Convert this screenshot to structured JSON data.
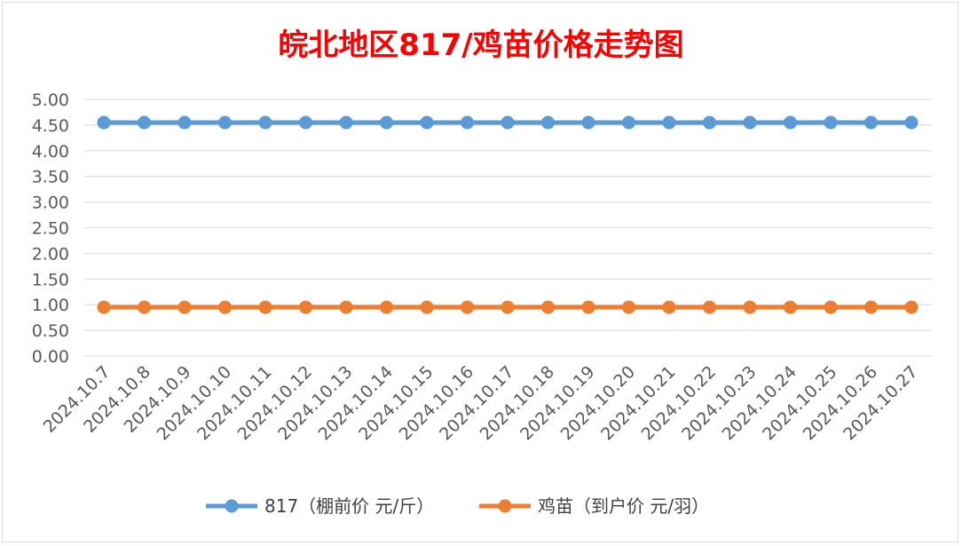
{
  "chart_data": {
    "type": "line",
    "title": "皖北地区817/鸡苗价格走势图",
    "title_color": "#ff0000",
    "x": [
      "2024.10.7",
      "2024.10.8",
      "2024.10.9",
      "2024.10.10",
      "2024.10.11",
      "2024.10.12",
      "2024.10.13",
      "2024.10.14",
      "2024.10.15",
      "2024.10.16",
      "2024.10.17",
      "2024.10.18",
      "2024.10.19",
      "2024.10.20",
      "2024.10.21",
      "2024.10.22",
      "2024.10.23",
      "2024.10.24",
      "2024.10.25",
      "2024.10.26",
      "2024.10.27"
    ],
    "series": [
      {
        "name": "817（棚前价 元/斤）",
        "color": "#5b9bd5",
        "values": [
          4.55,
          4.55,
          4.55,
          4.55,
          4.55,
          4.55,
          4.55,
          4.55,
          4.55,
          4.55,
          4.55,
          4.55,
          4.55,
          4.55,
          4.55,
          4.55,
          4.55,
          4.55,
          4.55,
          4.55,
          4.55
        ]
      },
      {
        "name": "鸡苗（到户价 元/羽）",
        "color": "#ed7d31",
        "values": [
          0.95,
          0.95,
          0.95,
          0.95,
          0.95,
          0.95,
          0.95,
          0.95,
          0.95,
          0.95,
          0.95,
          0.95,
          0.95,
          0.95,
          0.95,
          0.95,
          0.95,
          0.95,
          0.95,
          0.95,
          0.95
        ]
      }
    ],
    "ylim": [
      0,
      5
    ],
    "yticks": [
      "0.00",
      "0.50",
      "1.00",
      "1.50",
      "2.00",
      "2.50",
      "3.00",
      "3.50",
      "4.00",
      "4.50",
      "5.00"
    ],
    "grid": true,
    "legend_position": "bottom"
  }
}
